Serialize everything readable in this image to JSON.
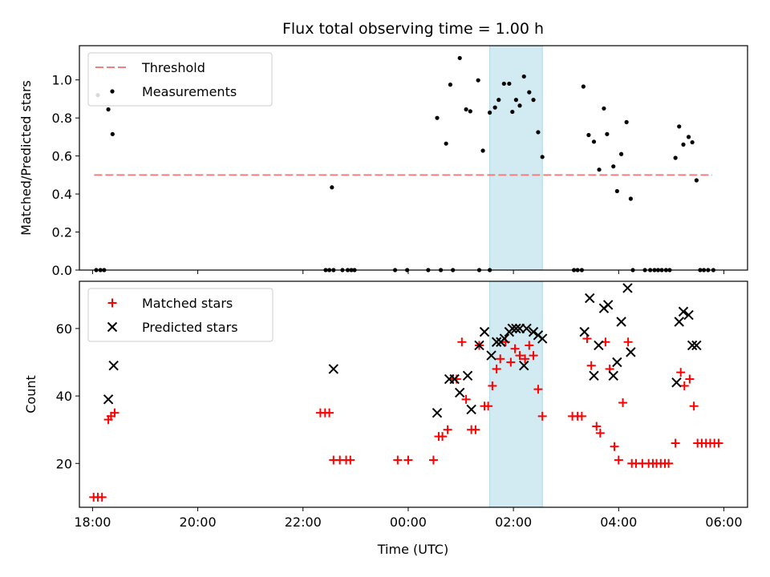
{
  "figure": {
    "title": "Flux total observing time = 1.00 h",
    "xlabel": "Time (UTC)",
    "x_tick_labels": [
      "18:00",
      "20:00",
      "22:00",
      "00:00",
      "02:00",
      "04:00",
      "06:00"
    ],
    "colors": {
      "threshold": "#f08080",
      "measurements": "#000000",
      "matched": "#ff0000",
      "predicted": "#000000",
      "highlight": "#add8e6"
    }
  },
  "chart_data": [
    {
      "type": "scatter",
      "panel": "top",
      "title": "Flux total observing time = 1.00 h",
      "xlabel": "",
      "ylabel": "Matched/Predicted stars",
      "x_unit": "hours since 18:00 UTC",
      "xlim": [
        -0.25,
        12.45
      ],
      "ylim": [
        0.0,
        1.18
      ],
      "y_ticks": [
        "0.0",
        "0.2",
        "0.4",
        "0.6",
        "0.8",
        "1.0"
      ],
      "y_tick_values": [
        0.0,
        0.2,
        0.4,
        0.6,
        0.8,
        1.0
      ],
      "legend": {
        "position": "top-left",
        "entries": [
          {
            "label": "Threshold",
            "style": "dashed-line"
          },
          {
            "label": "Measurements",
            "style": "dot"
          }
        ]
      },
      "threshold": {
        "name": "Threshold",
        "y": 0.5,
        "x_start": 0.03,
        "x_end": 11.78
      },
      "highlight_span": {
        "x_start": 7.55,
        "x_end": 8.55
      },
      "series": [
        {
          "name": "Measurements",
          "points": [
            [
              0.07,
              0.0
            ],
            [
              0.15,
              0.0
            ],
            [
              0.22,
              0.0
            ],
            [
              0.1,
              0.92
            ],
            [
              0.3,
              0.845
            ],
            [
              0.38,
              0.715
            ],
            [
              4.43,
              0.0
            ],
            [
              4.5,
              0.0
            ],
            [
              4.58,
              0.0
            ],
            [
              4.75,
              0.0
            ],
            [
              4.85,
              0.0
            ],
            [
              4.92,
              0.0
            ],
            [
              4.98,
              0.0
            ],
            [
              4.55,
              0.435
            ],
            [
              5.75,
              0.0
            ],
            [
              5.98,
              0.0
            ],
            [
              6.38,
              0.0
            ],
            [
              6.62,
              0.0
            ],
            [
              6.85,
              0.0
            ],
            [
              7.35,
              0.0
            ],
            [
              7.55,
              0.0
            ],
            [
              6.55,
              0.8
            ],
            [
              6.72,
              0.665
            ],
            [
              6.8,
              0.975
            ],
            [
              6.98,
              1.115
            ],
            [
              7.1,
              0.845
            ],
            [
              7.18,
              0.835
            ],
            [
              7.33,
              0.998
            ],
            [
              7.42,
              0.628
            ],
            [
              7.55,
              0.828
            ],
            [
              7.65,
              0.855
            ],
            [
              7.72,
              0.895
            ],
            [
              7.82,
              0.98
            ],
            [
              7.92,
              0.98
            ],
            [
              7.98,
              0.832
            ],
            [
              8.05,
              0.895
            ],
            [
              8.12,
              0.865
            ],
            [
              8.2,
              1.018
            ],
            [
              8.3,
              0.935
            ],
            [
              8.38,
              0.895
            ],
            [
              8.47,
              0.725
            ],
            [
              8.55,
              0.595
            ],
            [
              9.15,
              0.0
            ],
            [
              9.22,
              0.0
            ],
            [
              9.3,
              0.0
            ],
            [
              9.33,
              0.965
            ],
            [
              9.43,
              0.71
            ],
            [
              9.53,
              0.675
            ],
            [
              9.63,
              0.528
            ],
            [
              9.72,
              0.85
            ],
            [
              9.78,
              0.715
            ],
            [
              9.9,
              0.545
            ],
            [
              9.97,
              0.415
            ],
            [
              10.05,
              0.61
            ],
            [
              10.15,
              0.778
            ],
            [
              10.23,
              0.375
            ],
            [
              10.27,
              0.0
            ],
            [
              10.5,
              0.0
            ],
            [
              10.6,
              0.0
            ],
            [
              10.68,
              0.0
            ],
            [
              10.75,
              0.0
            ],
            [
              10.82,
              0.0
            ],
            [
              10.9,
              0.0
            ],
            [
              10.97,
              0.0
            ],
            [
              11.08,
              0.59
            ],
            [
              11.15,
              0.755
            ],
            [
              11.23,
              0.66
            ],
            [
              11.33,
              0.7
            ],
            [
              11.4,
              0.672
            ],
            [
              11.48,
              0.472
            ],
            [
              11.55,
              0.0
            ],
            [
              11.62,
              0.0
            ],
            [
              11.7,
              0.0
            ],
            [
              11.8,
              0.0
            ]
          ]
        }
      ]
    },
    {
      "type": "scatter",
      "panel": "bottom",
      "title": "",
      "xlabel": "Time (UTC)",
      "ylabel": "Count",
      "x_unit": "hours since 18:00 UTC",
      "xlim": [
        -0.25,
        12.45
      ],
      "ylim": [
        7,
        74
      ],
      "y_ticks": [
        "20",
        "40",
        "60"
      ],
      "y_tick_values": [
        20,
        40,
        60
      ],
      "legend": {
        "position": "top-left",
        "entries": [
          {
            "label": "Matched stars",
            "style": "plus"
          },
          {
            "label": "Predicted stars",
            "style": "cross"
          }
        ]
      },
      "highlight_span": {
        "x_start": 7.55,
        "x_end": 8.55
      },
      "series": [
        {
          "name": "Matched stars",
          "marker": "plus",
          "points": [
            [
              0.02,
              10
            ],
            [
              0.1,
              10
            ],
            [
              0.18,
              10
            ],
            [
              0.3,
              33
            ],
            [
              0.35,
              34
            ],
            [
              0.42,
              35
            ],
            [
              4.33,
              35
            ],
            [
              4.42,
              35
            ],
            [
              4.5,
              35
            ],
            [
              4.58,
              21
            ],
            [
              4.7,
              21
            ],
            [
              4.82,
              21
            ],
            [
              4.9,
              21
            ],
            [
              5.8,
              21
            ],
            [
              6.0,
              21
            ],
            [
              6.48,
              21
            ],
            [
              6.58,
              28
            ],
            [
              6.65,
              28
            ],
            [
              6.75,
              30
            ],
            [
              6.85,
              45
            ],
            [
              6.92,
              45
            ],
            [
              7.02,
              56
            ],
            [
              7.1,
              39
            ],
            [
              7.2,
              30
            ],
            [
              7.28,
              30
            ],
            [
              7.35,
              55
            ],
            [
              7.45,
              37
            ],
            [
              7.52,
              37
            ],
            [
              7.6,
              43
            ],
            [
              7.68,
              48
            ],
            [
              7.75,
              51
            ],
            [
              7.85,
              56
            ],
            [
              7.95,
              50
            ],
            [
              8.03,
              54
            ],
            [
              8.12,
              52
            ],
            [
              8.22,
              51
            ],
            [
              8.3,
              55
            ],
            [
              8.38,
              52
            ],
            [
              8.47,
              42
            ],
            [
              8.55,
              34
            ],
            [
              9.12,
              34
            ],
            [
              9.22,
              34
            ],
            [
              9.3,
              34
            ],
            [
              9.4,
              57
            ],
            [
              9.48,
              49
            ],
            [
              9.58,
              31
            ],
            [
              9.65,
              29
            ],
            [
              9.75,
              56
            ],
            [
              9.83,
              48
            ],
            [
              9.92,
              25
            ],
            [
              10.0,
              21
            ],
            [
              10.08,
              38
            ],
            [
              10.18,
              56
            ],
            [
              10.25,
              20
            ],
            [
              10.33,
              20
            ],
            [
              10.45,
              20
            ],
            [
              10.57,
              20
            ],
            [
              10.65,
              20
            ],
            [
              10.72,
              20
            ],
            [
              10.8,
              20
            ],
            [
              10.88,
              20
            ],
            [
              10.95,
              20
            ],
            [
              11.08,
              26
            ],
            [
              11.18,
              47
            ],
            [
              11.25,
              43
            ],
            [
              11.35,
              45
            ],
            [
              11.43,
              37
            ],
            [
              11.5,
              26
            ],
            [
              11.58,
              26
            ],
            [
              11.66,
              26
            ],
            [
              11.74,
              26
            ],
            [
              11.82,
              26
            ],
            [
              11.9,
              26
            ]
          ]
        },
        {
          "name": "Predicted stars",
          "marker": "cross",
          "points": [
            [
              0.3,
              39
            ],
            [
              0.4,
              49
            ],
            [
              4.58,
              48
            ],
            [
              6.55,
              35
            ],
            [
              6.78,
              45
            ],
            [
              6.88,
              45
            ],
            [
              6.98,
              41
            ],
            [
              7.13,
              46
            ],
            [
              7.2,
              36
            ],
            [
              7.35,
              55
            ],
            [
              7.45,
              59
            ],
            [
              7.58,
              52
            ],
            [
              7.68,
              56
            ],
            [
              7.76,
              56
            ],
            [
              7.83,
              57
            ],
            [
              7.92,
              59
            ],
            [
              7.98,
              60
            ],
            [
              8.05,
              60
            ],
            [
              8.12,
              60
            ],
            [
              8.2,
              49
            ],
            [
              8.25,
              60
            ],
            [
              8.38,
              59
            ],
            [
              8.47,
              58
            ],
            [
              8.55,
              57
            ],
            [
              9.35,
              59
            ],
            [
              9.45,
              69
            ],
            [
              9.53,
              46
            ],
            [
              9.62,
              55
            ],
            [
              9.72,
              66
            ],
            [
              9.8,
              67
            ],
            [
              9.9,
              46
            ],
            [
              9.97,
              50
            ],
            [
              10.05,
              62
            ],
            [
              10.17,
              72
            ],
            [
              10.23,
              53
            ],
            [
              11.1,
              44
            ],
            [
              11.15,
              62
            ],
            [
              11.23,
              65
            ],
            [
              11.33,
              64
            ],
            [
              11.4,
              55
            ],
            [
              11.48,
              55
            ]
          ]
        }
      ]
    }
  ]
}
